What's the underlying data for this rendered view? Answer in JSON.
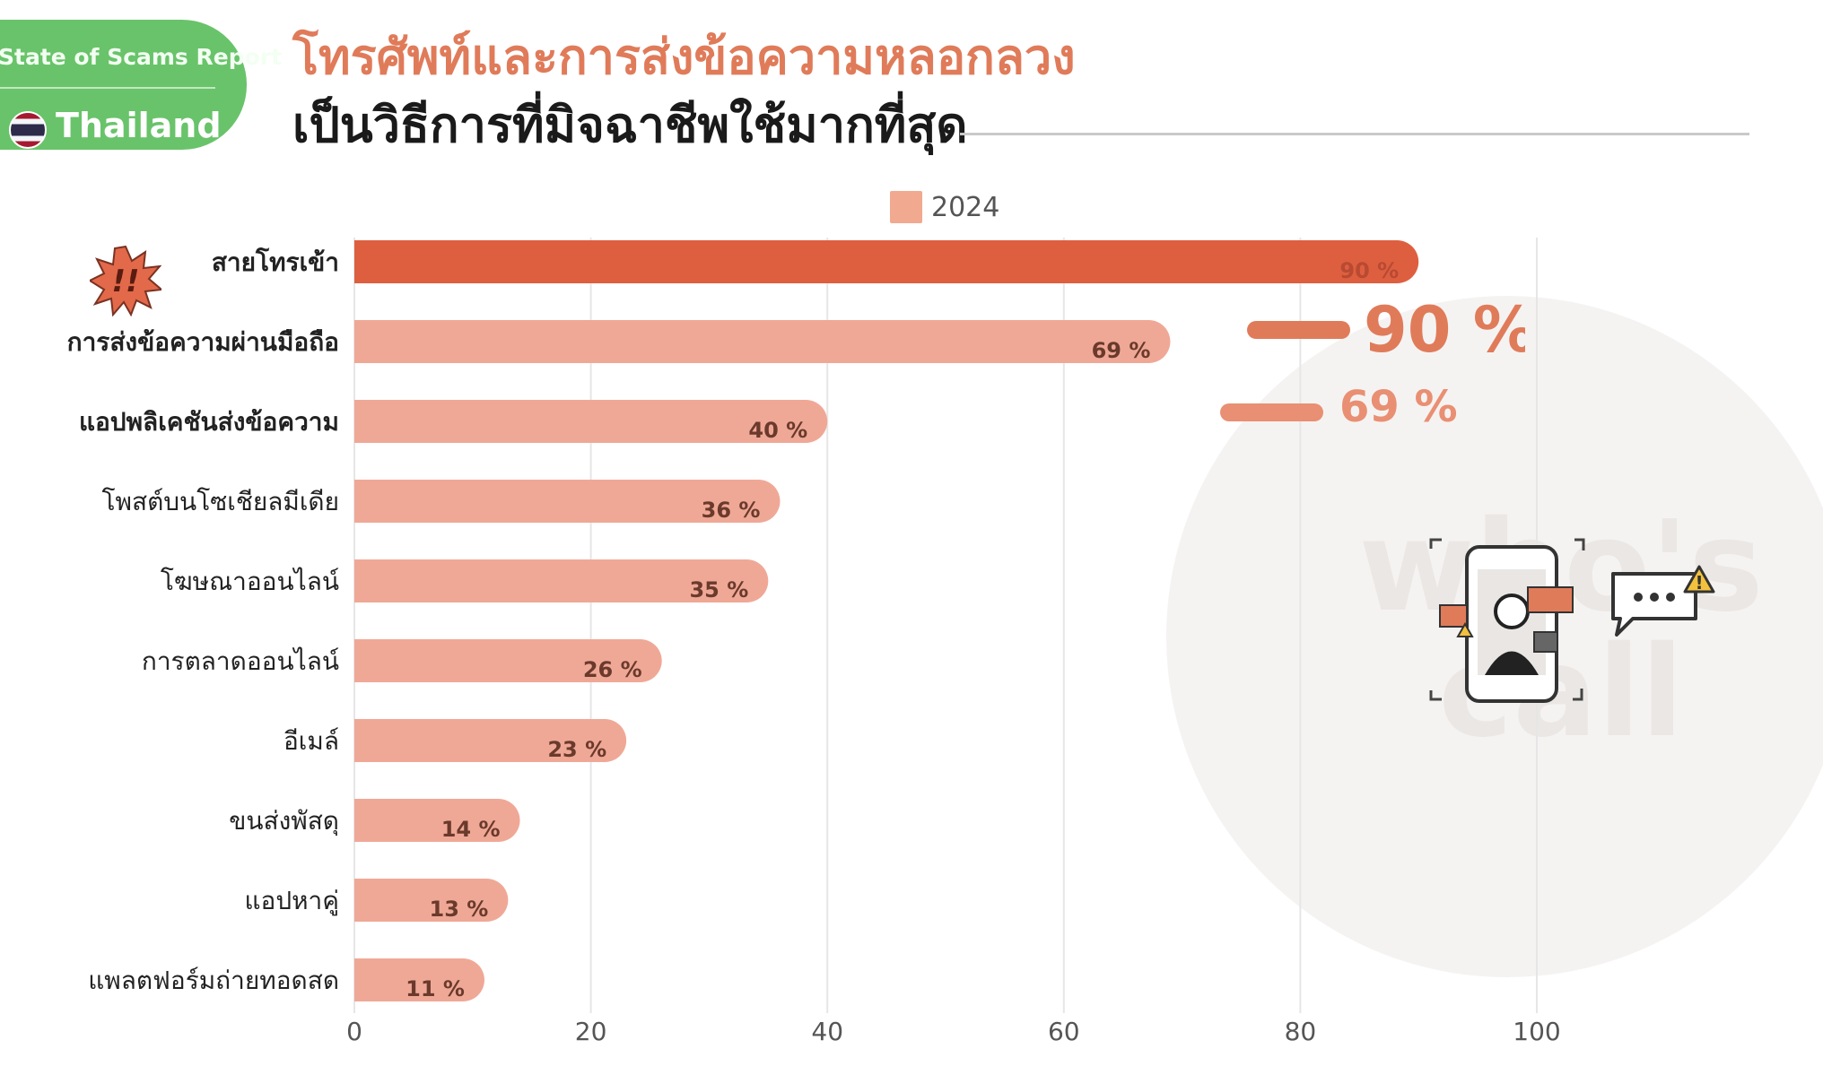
{
  "badge": {
    "report": "State of Scams Report",
    "country": "Thailand"
  },
  "title": {
    "line1": "โทรศัพท์และการส่งข้อความหลอกลวง",
    "line2": "เป็นวิธีการที่มิจฉาชีพใช้มากที่สุด"
  },
  "colors": {
    "accent": "#e07b5a",
    "bar_top": "#de5f3f",
    "bar": "#f0a896",
    "badge_green": "#69c36a",
    "legend": "#f1a98f"
  },
  "callout": {
    "first": "90 %",
    "second": "69 %"
  },
  "icons": [
    "alert-burst-icon",
    "flag-thailand-icon",
    "phone-scam-illustration",
    "chat-warning-icon"
  ],
  "chart_data": {
    "type": "bar",
    "orientation": "horizontal",
    "categories": [
      "สายโทรเข้า",
      "การส่งข้อความผ่านมือถือ",
      "แอปพลิเคชันส่งข้อความ",
      "โพสต์บนโซเชียลมีเดีย",
      "โฆษณาออนไลน์",
      "การตลาดออนไลน์",
      "อีเมล์",
      "ขนส่งพัสดุ",
      "แอปหาคู่",
      "แพลตฟอร์มถ่ายทอดสด"
    ],
    "bold_categories": [
      0,
      1,
      2
    ],
    "series": [
      {
        "name": "2024",
        "values": [
          90,
          69,
          40,
          36,
          35,
          26,
          23,
          14,
          13,
          11
        ]
      }
    ],
    "data_labels": [
      "90 %",
      "69 %",
      "40 %",
      "36 %",
      "35 %",
      "26 %",
      "23 %",
      "14 %",
      "13 %",
      "11 %"
    ],
    "xlim": [
      0,
      100
    ],
    "xticks": [
      0,
      20,
      40,
      60,
      80,
      100
    ],
    "grid": true,
    "legend": "top-center"
  }
}
